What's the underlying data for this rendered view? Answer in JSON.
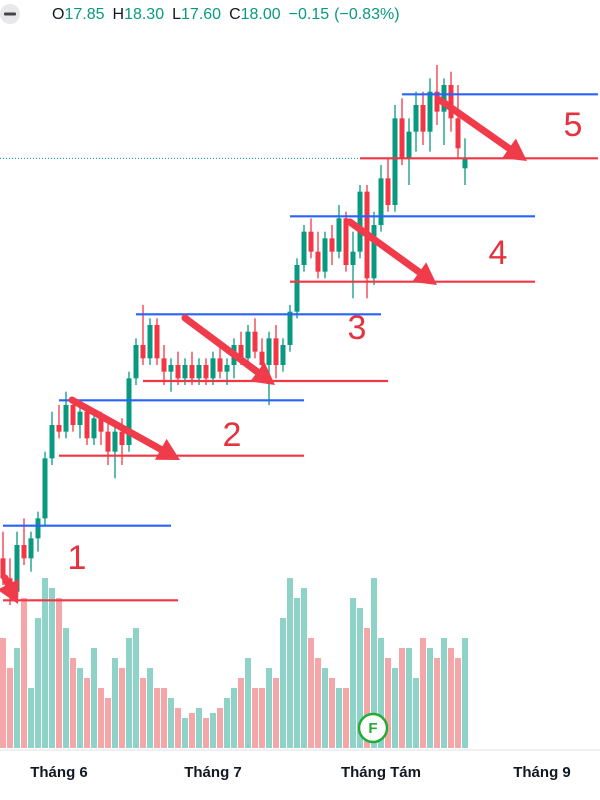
{
  "chart_data": {
    "type": "candlestick",
    "legend": {
      "items": [
        {
          "label": "O",
          "value": "17.85"
        },
        {
          "label": "H",
          "value": "18.30"
        },
        {
          "label": "L",
          "value": "17.60"
        },
        {
          "label": "C",
          "value": "18.00"
        }
      ],
      "change": "−0.15",
      "change_pct": "(−0.83%)"
    },
    "categories": [
      null,
      null,
      null,
      null,
      null,
      null,
      null,
      null,
      "Tháng 6",
      null,
      null,
      null,
      null,
      null,
      null,
      null,
      null,
      null,
      null,
      null,
      null,
      null,
      null,
      null,
      null,
      null,
      null,
      null,
      null,
      null,
      "Tháng 7",
      null,
      null,
      null,
      null,
      null,
      null,
      null,
      null,
      null,
      null,
      null,
      null,
      null,
      null,
      null,
      null,
      null,
      null,
      null,
      null,
      null,
      null,
      null,
      "Tháng Tám",
      null,
      null,
      null,
      null,
      null,
      null,
      null,
      null,
      null,
      null,
      null,
      null,
      null,
      null,
      null,
      null,
      null,
      null,
      null,
      null,
      null,
      null,
      "Tháng 9",
      null,
      null,
      null,
      null,
      null,
      null,
      null
    ],
    "open": [
      12.0,
      11.7,
      11.5,
      12.2,
      12.0,
      12.3,
      12.6,
      13.5,
      14.0,
      13.9,
      14.3,
      14.0,
      14.2,
      13.8,
      14.1,
      13.9,
      13.6,
      13.9,
      13.7,
      14.7,
      15.2,
      15.0,
      15.5,
      15.0,
      14.8,
      14.9,
      14.7,
      14.9,
      14.7,
      14.9,
      14.7,
      15.0,
      14.8,
      14.9,
      15.2,
      15.0,
      15.4,
      15.1,
      14.9,
      15.3,
      14.9,
      15.2,
      15.7,
      16.4,
      16.9,
      16.6,
      16.3,
      16.8,
      16.6,
      17.1,
      16.4,
      16.6,
      17.5,
      16.2,
      17.0,
      17.7,
      17.3,
      18.6,
      18.0,
      18.4,
      18.8,
      18.4,
      19.0,
      18.7,
      19.1,
      18.6,
      17.85,
      null,
      null,
      null,
      null,
      null,
      null,
      null,
      null,
      null,
      null,
      null,
      null,
      null,
      null,
      null,
      null,
      null,
      null
    ],
    "high": [
      12.4,
      12.0,
      12.4,
      12.6,
      12.4,
      12.7,
      13.6,
      14.2,
      14.3,
      14.5,
      14.4,
      14.3,
      14.3,
      14.2,
      14.2,
      14.1,
      14.0,
      14.1,
      14.8,
      15.3,
      15.8,
      15.6,
      15.6,
      15.2,
      15.0,
      15.1,
      15.0,
      15.1,
      15.0,
      15.0,
      15.1,
      15.2,
      15.0,
      15.3,
      15.4,
      15.5,
      15.6,
      15.3,
      15.4,
      15.5,
      15.3,
      15.8,
      16.5,
      17.0,
      17.1,
      16.9,
      16.9,
      17.0,
      17.3,
      17.2,
      16.9,
      17.6,
      17.6,
      17.2,
      17.9,
      18.0,
      18.8,
      18.9,
      18.6,
      19.0,
      19.0,
      19.2,
      19.4,
      19.2,
      19.3,
      19.1,
      18.3,
      null,
      null,
      null,
      null,
      null,
      null,
      null,
      null,
      null,
      null,
      null,
      null,
      null,
      null,
      null,
      null,
      null,
      null
    ],
    "low": [
      11.6,
      11.3,
      11.4,
      11.9,
      11.8,
      12.1,
      12.5,
      13.4,
      13.8,
      13.8,
      13.9,
      13.8,
      13.7,
      13.7,
      13.7,
      13.4,
      13.2,
      13.4,
      13.6,
      14.6,
      14.9,
      14.9,
      14.9,
      14.6,
      14.5,
      14.6,
      14.6,
      14.6,
      14.6,
      14.6,
      14.6,
      14.7,
      14.6,
      14.7,
      14.9,
      14.9,
      15.0,
      14.8,
      14.3,
      14.7,
      14.8,
      15.1,
      15.6,
      16.3,
      16.5,
      16.2,
      16.2,
      16.4,
      16.5,
      16.3,
      15.9,
      16.5,
      15.9,
      16.1,
      16.9,
      17.2,
      17.2,
      17.9,
      17.6,
      18.1,
      18.2,
      18.1,
      18.5,
      18.2,
      18.4,
      18.0,
      17.6,
      null,
      null,
      null,
      null,
      null,
      null,
      null,
      null,
      null,
      null,
      null,
      null,
      null,
      null,
      null,
      null,
      null,
      null
    ],
    "close": [
      11.7,
      11.5,
      12.2,
      12.0,
      12.3,
      12.6,
      13.5,
      14.0,
      13.9,
      14.3,
      14.0,
      14.2,
      13.8,
      14.1,
      13.9,
      13.6,
      13.9,
      13.7,
      14.7,
      15.2,
      15.0,
      15.5,
      15.0,
      14.8,
      14.9,
      14.7,
      14.9,
      14.7,
      14.9,
      14.7,
      15.0,
      14.8,
      14.9,
      15.2,
      15.0,
      15.4,
      15.1,
      14.9,
      15.3,
      14.9,
      15.2,
      15.7,
      16.4,
      16.9,
      16.6,
      16.3,
      16.8,
      16.6,
      17.1,
      16.4,
      16.6,
      17.5,
      16.2,
      17.0,
      17.7,
      17.3,
      18.6,
      18.0,
      18.4,
      18.8,
      18.4,
      19.0,
      18.7,
      19.1,
      18.6,
      18.15,
      18.0,
      null,
      null,
      null,
      null,
      null,
      null,
      null,
      null,
      null,
      null,
      null,
      null,
      null,
      null,
      null,
      null,
      null,
      null
    ],
    "volume": [
      110,
      80,
      100,
      150,
      60,
      130,
      170,
      160,
      150,
      120,
      90,
      80,
      70,
      100,
      60,
      50,
      90,
      80,
      110,
      120,
      70,
      80,
      60,
      60,
      50,
      40,
      30,
      35,
      40,
      30,
      35,
      40,
      50,
      60,
      70,
      90,
      60,
      60,
      80,
      70,
      130,
      170,
      150,
      160,
      110,
      90,
      80,
      70,
      60,
      60,
      150,
      140,
      120,
      170,
      110,
      90,
      80,
      100,
      100,
      70,
      110,
      100,
      90,
      110,
      100,
      90,
      110,
      null,
      null,
      null,
      null,
      null,
      null,
      null,
      null,
      null,
      null,
      null,
      null,
      null,
      null,
      null,
      null,
      null,
      null
    ],
    "up_color": "#089981",
    "down_color": "#f23645",
    "volume_up_color": "#8fd3c8",
    "volume_down_color": "#f5a6a8",
    "event_marker": "F",
    "annotations": [
      {
        "label": "1",
        "levels": [
          {
            "price": 12.49,
            "from": 0,
            "to": 24,
            "color": "#2962ff"
          },
          {
            "price": 11.37,
            "from": 0,
            "to": 25,
            "color": "#f23645"
          }
        ]
      },
      {
        "label": "2",
        "levels": [
          {
            "price": 14.37,
            "from": 8,
            "to": 43,
            "color": "#2962ff"
          },
          {
            "price": 13.54,
            "from": 8,
            "to": 43,
            "color": "#f23645"
          }
        ]
      },
      {
        "label": "3",
        "levels": [
          {
            "price": 15.66,
            "from": 19,
            "to": 54,
            "color": "#2962ff"
          },
          {
            "price": 14.66,
            "from": 20,
            "to": 55,
            "color": "#f23645"
          }
        ]
      },
      {
        "label": "4",
        "levels": [
          {
            "price": 17.13,
            "from": 41,
            "to": 76,
            "color": "#2962ff"
          },
          {
            "price": 16.15,
            "from": 41,
            "to": 76,
            "color": "#f23645"
          }
        ]
      },
      {
        "label": "5",
        "levels": [
          {
            "price": 18.96,
            "from": 57,
            "to": 85,
            "color": "#2962ff"
          },
          {
            "price": 18.0,
            "from": 51,
            "to": 85,
            "color": "#f23645"
          }
        ]
      }
    ]
  }
}
